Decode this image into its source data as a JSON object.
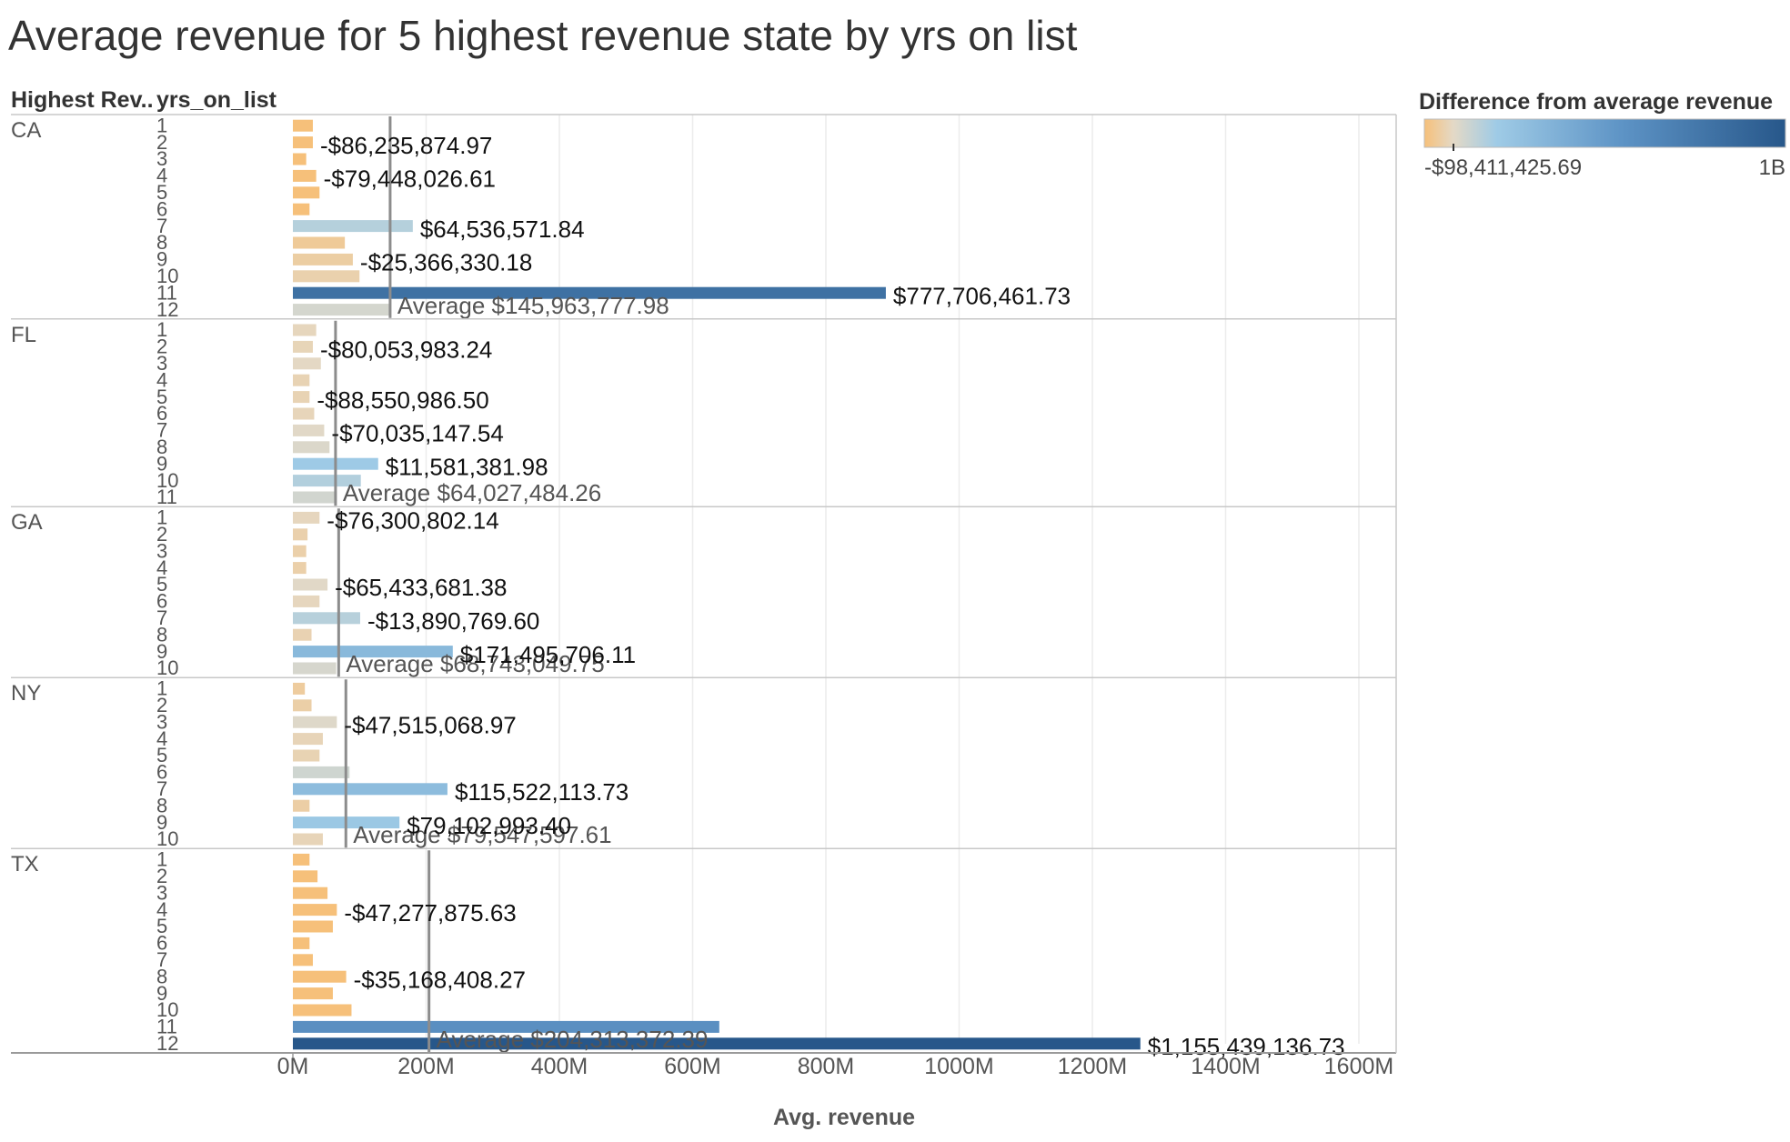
{
  "title": "Average revenue for 5 highest revenue state by yrs on list",
  "headers": {
    "state": "Highest Rev..",
    "years": "yrs_on_list"
  },
  "legend": {
    "title": "Difference from average revenue",
    "min_label": "-$98,411,425.69",
    "max_label": "1B",
    "min": -98411425.69,
    "max": 1000000000,
    "colors": [
      "#f6c07a",
      "#e4d9c6",
      "#9fcbe6",
      "#5d93c5",
      "#27578a"
    ]
  },
  "chart_data": {
    "type": "bar",
    "orientation": "horizontal",
    "title": "Average revenue for 5 highest revenue state by yrs on list",
    "xlabel": "Avg. revenue",
    "ylabel": "",
    "xlim": [
      0,
      1600000000
    ],
    "x_ticks": [
      "0M",
      "200M",
      "400M",
      "600M",
      "800M",
      "1000M",
      "1200M",
      "1400M",
      "1600M"
    ],
    "x_tick_values": [
      0,
      200000000,
      400000000,
      600000000,
      800000000,
      1000000000,
      1200000000,
      1400000000,
      1600000000
    ],
    "grid": true,
    "color_encoding": "difference from average revenue",
    "states": [
      {
        "state": "CA",
        "average": 145963777.98,
        "average_label": "Average $145,963,777.98",
        "years": [
          "1",
          "2",
          "3",
          "4",
          "5",
          "6",
          "7",
          "8",
          "9",
          "10",
          "11",
          "12"
        ],
        "values": [
          30000000,
          30000000,
          20000000,
          35000000,
          40000000,
          25000000,
          180000000,
          78000000,
          90000000,
          100000000,
          890000000,
          145000000
        ],
        "labels": [
          {
            "year": "2",
            "text": "-$86,235,874.97"
          },
          {
            "year": "4",
            "text": "-$79,448,026.61"
          },
          {
            "year": "7",
            "text": "$64,536,571.84"
          },
          {
            "year": "9",
            "text": "-$25,366,330.18"
          },
          {
            "year": "11",
            "text": "$777,706,461.73"
          }
        ]
      },
      {
        "state": "FL",
        "average": 64027484.26,
        "average_label": "Average $64,027,484.26",
        "years": [
          "1",
          "2",
          "3",
          "4",
          "5",
          "6",
          "7",
          "8",
          "9",
          "10",
          "11"
        ],
        "values": [
          35000000,
          30000000,
          42000000,
          25000000,
          25000000,
          32000000,
          47000000,
          55000000,
          128000000,
          102000000,
          66000000
        ],
        "labels": [
          {
            "year": "2",
            "text": "-$80,053,983.24"
          },
          {
            "year": "5",
            "text": "-$88,550,986.50"
          },
          {
            "year": "7",
            "text": "-$70,035,147.54"
          },
          {
            "year": "9",
            "text": "$11,581,381.98"
          }
        ]
      },
      {
        "state": "GA",
        "average": 68743049.75,
        "average_label": "Average $68,743,049.75",
        "years": [
          "1",
          "2",
          "3",
          "4",
          "5",
          "6",
          "7",
          "8",
          "9",
          "10"
        ],
        "values": [
          40000000,
          22000000,
          20000000,
          20000000,
          52000000,
          40000000,
          101000000,
          28000000,
          240000000,
          65000000
        ],
        "labels": [
          {
            "year": "1",
            "text": "-$76,300,802.14"
          },
          {
            "year": "5",
            "text": "-$65,433,681.38"
          },
          {
            "year": "7",
            "text": "-$13,890,769.60"
          },
          {
            "year": "9",
            "text": "$171,495,706.11"
          }
        ]
      },
      {
        "state": "NY",
        "average": 79547597.61,
        "average_label": "Average $79,547,597.61",
        "years": [
          "1",
          "2",
          "3",
          "4",
          "5",
          "6",
          "7",
          "8",
          "9",
          "10"
        ],
        "values": [
          18000000,
          28000000,
          66000000,
          45000000,
          40000000,
          85000000,
          232000000,
          25000000,
          160000000,
          45000000
        ],
        "labels": [
          {
            "year": "3",
            "text": "-$47,515,068.97"
          },
          {
            "year": "7",
            "text": "$115,522,113.73"
          },
          {
            "year": "9",
            "text": "$79,102,993.40"
          }
        ]
      },
      {
        "state": "TX",
        "average": 204313372.39,
        "average_label": "Average $204,313,372.39",
        "years": [
          "1",
          "2",
          "3",
          "4",
          "5",
          "6",
          "7",
          "8",
          "9",
          "10",
          "11",
          "12"
        ],
        "values": [
          25000000,
          37000000,
          52000000,
          66000000,
          60000000,
          25000000,
          30000000,
          80000000,
          60000000,
          88000000,
          640000000,
          1272000000
        ],
        "labels": [
          {
            "year": "4",
            "text": "-$47,277,875.63"
          },
          {
            "year": "8",
            "text": "-$35,168,408.27"
          },
          {
            "year": "12",
            "text": "$1,155,439,136.73"
          }
        ]
      }
    ]
  }
}
